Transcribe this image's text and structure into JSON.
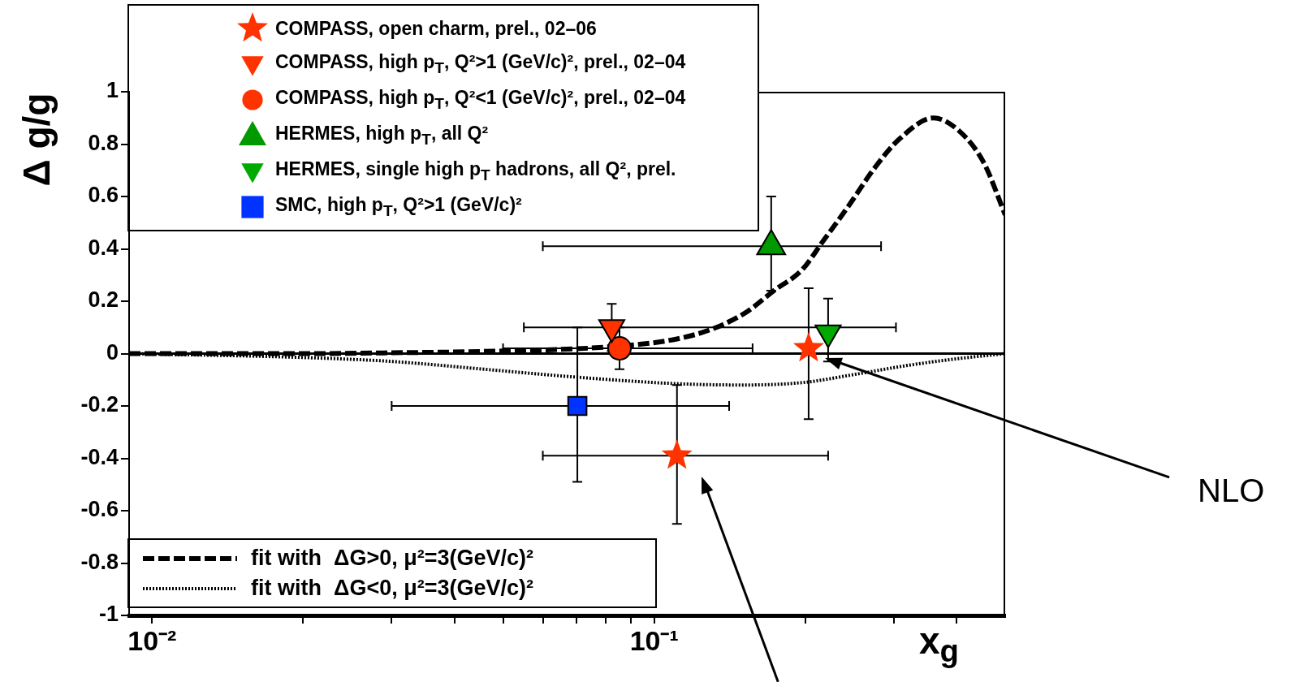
{
  "chart_data": {
    "type": "scatter",
    "xlabel": "x$_{g}$",
    "ylabel": "Δ g/g",
    "log": "x",
    "legend": "top left",
    "xlim": [
      0.009,
      0.5
    ],
    "ylim": [
      -1,
      1
    ],
    "xticks": [
      {
        "value": 0.01,
        "label": "10⁻²"
      },
      {
        "value": 0.02,
        "label": null
      },
      {
        "value": 0.03,
        "label": null
      },
      {
        "value": 0.04,
        "label": null
      },
      {
        "value": 0.05,
        "label": null
      },
      {
        "value": 0.06,
        "label": null
      },
      {
        "value": 0.07,
        "label": null
      },
      {
        "value": 0.08,
        "label": null
      },
      {
        "value": 0.09,
        "label": null
      },
      {
        "value": 0.1,
        "label": "10⁻¹"
      },
      {
        "value": 0.2,
        "label": null
      },
      {
        "value": 0.3,
        "label": null
      },
      {
        "value": 0.4,
        "label": null
      }
    ],
    "yticks": [
      -1,
      -0.8,
      -0.6,
      -0.4,
      -0.2,
      0,
      0.2,
      0.4,
      0.6,
      0.8,
      1
    ],
    "ref_lines": [
      {
        "axis": "y",
        "value": 0,
        "color": "#000000"
      }
    ],
    "annotations": [
      "NLO"
    ],
    "series": [
      {
        "name": "COMPASS, open charm, prel., 02–06",
        "color": "#ff3300",
        "marker": "star",
        "x": [
          0.111,
          0.203
        ],
        "values": [
          -0.39,
          0.02
        ],
        "errors": [
          [
            -0.65,
            -0.12
          ],
          [
            -0.25,
            0.25
          ]
        ],
        "xerrors": [
          [
            0.06,
            0.222
          ],
          null
        ]
      },
      {
        "name": "COMPASS, high p$_{T}$, Q²>1 (GeV/c)², prel., 02–04",
        "color": "#ff3300",
        "marker": "triangle-down",
        "x": [
          0.0823
        ],
        "values": [
          0.1
        ],
        "errors": [
          [
            0.01,
            0.19
          ]
        ],
        "xerrors": [
          [
            0.055,
            0.303
          ]
        ]
      },
      {
        "name": "COMPASS, high p$_{T}$, Q²<1 (GeV/c)², prel., 02–04",
        "color": "#ff3300",
        "marker": "circle",
        "x": [
          0.0853
        ],
        "values": [
          0.02
        ],
        "errors": [
          [
            -0.06,
            0.1
          ]
        ],
        "xerrors": [
          [
            0.05,
            0.157
          ]
        ]
      },
      {
        "name": "HERMES, high p$_{T}$, all Q²",
        "color": "#009900",
        "marker": "triangle",
        "x": [
          0.171
        ],
        "values": [
          0.41
        ],
        "errors": [
          [
            0.24,
            0.6
          ]
        ],
        "xerrors": [
          [
            0.06,
            0.283
          ]
        ]
      },
      {
        "name": "HERMES, single high p$_{T}$ hadrons, all Q², prel.",
        "color": "#00aa00",
        "marker": "triangle-down",
        "x": [
          0.222
        ],
        "values": [
          0.08
        ],
        "errors": [
          [
            -0.03,
            0.21
          ]
        ]
      },
      {
        "name": "SMC, high p$_{T}$, Q²>1 (GeV/c)²",
        "color": "#0033ff",
        "marker": "square",
        "x": [
          0.0703
        ],
        "values": [
          -0.2
        ],
        "errors": [
          [
            -0.49,
            0.1
          ]
        ],
        "xerrors": [
          [
            0.03,
            0.141
          ]
        ]
      },
      {
        "name": "fit with  ΔG>0, μ²=3(GeV/c)²",
        "type": "line",
        "color": "#000000",
        "marker": "none",
        "line_style": "dashed",
        "x": [
          0.009,
          0.02,
          0.03,
          0.05,
          0.08,
          0.111,
          0.133,
          0.153,
          0.173,
          0.197,
          0.217,
          0.243,
          0.275,
          0.308,
          0.36,
          0.405,
          0.453,
          0.5
        ],
        "values": [
          0,
          0,
          0.003,
          0.01,
          0.025,
          0.056,
          0.1,
          0.16,
          0.24,
          0.32,
          0.43,
          0.56,
          0.71,
          0.82,
          0.9,
          0.85,
          0.73,
          0.53
        ]
      },
      {
        "name": "fit with  ΔG<0, μ²=3(GeV/c)²",
        "type": "line",
        "color": "#000000",
        "marker": "none",
        "line_style": "dotted",
        "x": [
          0.009,
          0.02,
          0.03,
          0.046,
          0.07,
          0.111,
          0.15,
          0.199,
          0.25,
          0.32,
          0.4,
          0.5
        ],
        "values": [
          0,
          -0.015,
          -0.03,
          -0.06,
          -0.09,
          -0.115,
          -0.12,
          -0.11,
          -0.08,
          -0.045,
          -0.02,
          0
        ]
      }
    ]
  }
}
